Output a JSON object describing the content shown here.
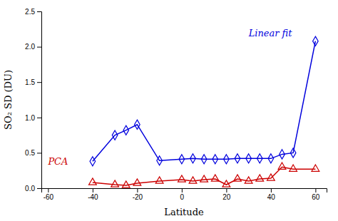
{
  "chart_data": {
    "type": "line",
    "x": [
      -40,
      -30,
      -25,
      -20,
      -10,
      0,
      5,
      10,
      15,
      20,
      25,
      30,
      35,
      40,
      45,
      50,
      60
    ],
    "series": [
      {
        "color": "#0000dd",
        "marker": "diamond",
        "line_style": "solid",
        "values": [
          0.38,
          0.75,
          0.82,
          0.9,
          0.39,
          0.41,
          0.42,
          0.41,
          0.41,
          0.41,
          0.42,
          0.42,
          0.42,
          0.42,
          0.48,
          0.5,
          2.08
        ]
      },
      {
        "color": "#cc0000",
        "marker": "triangle",
        "line_style": "solid",
        "values": [
          0.08,
          0.05,
          0.04,
          0.07,
          0.1,
          0.12,
          0.1,
          0.12,
          0.13,
          0.05,
          0.13,
          0.1,
          0.13,
          0.14,
          0.3,
          0.27,
          0.27
        ]
      }
    ],
    "x_label": "Latitude",
    "y_label": "SO₂ SD (DU)",
    "xlim": [
      -63,
      65
    ],
    "ylim": [
      0.0,
      2.5
    ],
    "xticks": [
      -60,
      -40,
      -20,
      0,
      20,
      40,
      60
    ],
    "yticks": [
      {
        "value": 0.0,
        "label": "0.0"
      },
      0.5,
      {
        "value": 1.0,
        "label": "1.0"
      },
      1.5,
      {
        "value": 2.0,
        "label": "2.0"
      },
      2.5
    ],
    "annotations": [
      {
        "text": "Linear fit",
        "x": 30,
        "y": 2.15,
        "color": "#0000dd"
      },
      {
        "text": "PCA",
        "x": -60,
        "y": 0.33,
        "color": "#cc0000"
      }
    ],
    "grid": false
  }
}
